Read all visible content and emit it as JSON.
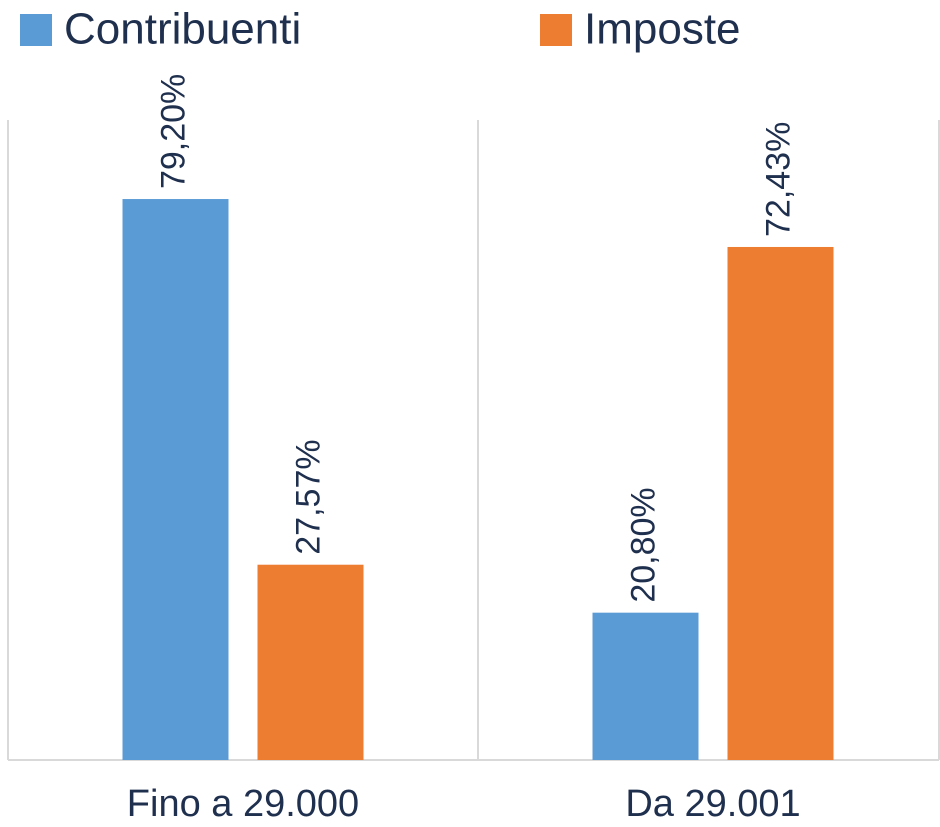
{
  "chart_data": {
    "type": "bar",
    "categories": [
      "Fino a 29.000",
      "Da 29.001"
    ],
    "series": [
      {
        "name": "Contribuenti",
        "color": "#5b9bd5",
        "values": [
          79.2,
          20.8
        ],
        "value_labels": [
          "79,20%",
          "20,80%"
        ]
      },
      {
        "name": "Imposte",
        "color": "#ed7d31",
        "values": [
          27.57,
          72.43
        ],
        "value_labels": [
          "27,57%",
          "72,43%"
        ]
      }
    ]
  }
}
